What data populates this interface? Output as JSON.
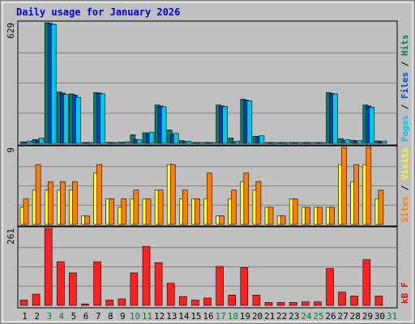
{
  "chart_data": {
    "type": "bar",
    "title": "Daily usage for January 2026",
    "categories": [
      "1",
      "2",
      "3",
      "4",
      "5",
      "6",
      "7",
      "8",
      "9",
      "10",
      "11",
      "12",
      "13",
      "14",
      "15",
      "16",
      "17",
      "18",
      "19",
      "20",
      "21",
      "22",
      "23",
      "24",
      "25",
      "26",
      "27",
      "28",
      "29",
      "30",
      "31"
    ],
    "weekend_days": [
      3,
      4,
      10,
      11,
      17,
      18,
      24,
      25,
      31
    ],
    "panels": [
      {
        "id": "top",
        "max_label": "629",
        "ymax": 629,
        "legend": [
          {
            "text": "Pages",
            "color": "#00c8e8"
          },
          {
            "text": " / ",
            "color": "#000000"
          },
          {
            "text": "Files",
            "color": "#0050c8"
          },
          {
            "text": " / ",
            "color": "#000000"
          },
          {
            "text": "Hits",
            "color": "#008060"
          }
        ],
        "series": [
          {
            "name": "Hits",
            "color": "#008060",
            "values": [
              8,
              20,
              629,
              268,
              258,
              1,
              265,
              5,
              6,
              45,
              55,
              200,
              70,
              14,
              3,
              5,
              200,
              28,
              230,
              37,
              1,
              1,
              1,
              1,
              1,
              265,
              25,
              16,
              200,
              13,
              0
            ]
          },
          {
            "name": "Files",
            "color": "#0040c0",
            "values": [
              5,
              18,
              625,
              262,
              252,
              1,
              262,
              3,
              4,
              20,
              52,
              195,
              50,
              10,
              2,
              4,
              195,
              8,
              225,
              35,
              1,
              1,
              1,
              1,
              1,
              260,
              15,
              13,
              195,
              10,
              0
            ]
          },
          {
            "name": "Pages",
            "color": "#00c8e8",
            "values": [
              12,
              28,
              620,
              255,
              240,
              1,
              258,
              3,
              8,
              18,
              58,
              190,
              52,
              12,
              3,
              4,
              192,
              12,
              222,
              40,
              1,
              2,
              4,
              3,
              2,
              258,
              20,
              14,
              188,
              12,
              0
            ]
          }
        ]
      },
      {
        "id": "mid",
        "max_label": "9",
        "ymax": 9,
        "legend": [
          {
            "text": "Sites",
            "color": "#ff8000"
          },
          {
            "text": " / ",
            "color": "#000000"
          },
          {
            "text": "Visits",
            "color": "#ffff00"
          }
        ],
        "series": [
          {
            "name": "Visits",
            "color": "#ffff40",
            "values": [
              2,
              4,
              4,
              4,
              4,
              1,
              6,
              3,
              2,
              3,
              3,
              4,
              7,
              3,
              3,
              3,
              1,
              3,
              5,
              4,
              2,
              1,
              3,
              2,
              2,
              2,
              7,
              5,
              7,
              3,
              0
            ]
          },
          {
            "name": "Sites",
            "color": "#ff8000",
            "values": [
              3,
              7,
              5,
              5,
              5,
              1,
              7,
              3,
              3,
              4,
              3,
              4,
              7,
              4,
              3,
              6,
              1,
              4,
              6,
              5,
              2,
              1,
              3,
              2,
              2,
              2,
              9,
              7,
              9,
              4,
              0
            ]
          }
        ]
      },
      {
        "id": "bot",
        "max_label": "261",
        "ymax": 261,
        "legend": [
          {
            "text": "kB F",
            "color": "#ff0000"
          }
        ],
        "series": [
          {
            "name": "kB F",
            "color": "#ff2020",
            "values": [
              18,
              38,
              261,
              148,
              110,
              5,
              148,
              18,
              22,
              110,
              200,
              145,
              75,
              30,
              18,
              25,
              132,
              35,
              128,
              35,
              10,
              10,
              10,
              12,
              12,
              125,
              45,
              32,
              155,
              32,
              0
            ]
          }
        ]
      }
    ]
  }
}
